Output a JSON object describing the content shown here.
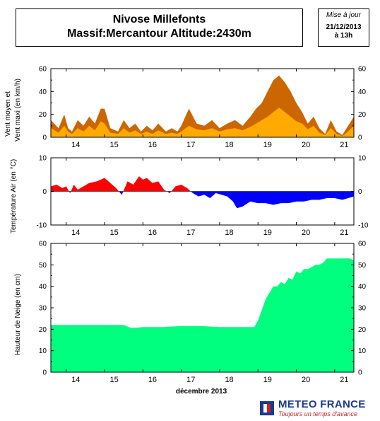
{
  "header": {
    "title_line1": "Nivose Millefonts",
    "title_line2": "Massif:Mercantour Altitude:2430m",
    "date_label": "Mise à jour",
    "date_value": "21/12/2013",
    "time_value": "à 13h"
  },
  "x_axis": {
    "day_labels": [
      "14",
      "15",
      "16",
      "17",
      "18",
      "19",
      "20",
      "21"
    ],
    "title": "décembre 2013"
  },
  "logo": {
    "name": "METEO FRANCE",
    "tagline": "Toujours un temps d'avance"
  },
  "colors": {
    "wind_max": "#cc6600",
    "wind_mean": "#ffaa00",
    "temp_positive": "#ff0000",
    "temp_negative": "#0000ff",
    "snow": "#00ff7f",
    "logo_blue": "#1b3a8c",
    "logo_red": "#cc2222"
  },
  "chart_data": [
    {
      "type": "area",
      "ylabel": "Vent moyen et Vent maxi (en km/h)",
      "ylim": [
        0,
        60
      ],
      "yticks": [
        0,
        20,
        40,
        60
      ],
      "x_unit": "day of December 2013",
      "xlim": [
        13.6,
        21.5
      ],
      "grid": false,
      "series": [
        {
          "x": [
            13.6,
            13.8,
            13.95,
            14.05,
            14.15,
            14.3,
            14.45,
            14.6,
            14.75,
            14.9,
            15.0,
            15.15,
            15.35,
            15.5,
            15.65,
            15.8,
            15.95,
            16.1,
            16.25,
            16.4,
            16.6,
            16.75,
            16.9,
            17.0,
            17.2,
            17.4,
            17.6,
            17.8,
            18.0,
            18.2,
            18.4,
            18.6,
            18.8,
            18.95,
            19.1,
            19.25,
            19.4,
            19.55,
            19.7,
            19.85,
            20.0,
            20.15,
            20.3,
            20.45,
            20.6,
            20.75,
            20.9,
            21.05,
            21.2,
            21.35,
            21.5
          ],
          "values": [
            15,
            8,
            20,
            8,
            5,
            15,
            10,
            18,
            12,
            25,
            25,
            8,
            5,
            15,
            8,
            12,
            5,
            10,
            6,
            12,
            5,
            8,
            5,
            10,
            25,
            12,
            10,
            15,
            8,
            12,
            15,
            10,
            18,
            25,
            30,
            40,
            50,
            54,
            48,
            40,
            30,
            22,
            12,
            18,
            8,
            3,
            15,
            5,
            2,
            10,
            18
          ]
        },
        {
          "x": [
            13.6,
            13.8,
            13.95,
            14.05,
            14.15,
            14.3,
            14.45,
            14.6,
            14.75,
            14.9,
            15.0,
            15.15,
            15.35,
            15.5,
            15.65,
            15.8,
            15.95,
            16.1,
            16.25,
            16.4,
            16.6,
            16.75,
            16.9,
            17.0,
            17.2,
            17.4,
            17.6,
            17.8,
            18.0,
            18.2,
            18.4,
            18.6,
            18.8,
            18.95,
            19.1,
            19.25,
            19.4,
            19.55,
            19.7,
            19.85,
            20.0,
            20.15,
            20.3,
            20.45,
            20.6,
            20.75,
            20.9,
            21.05,
            21.2,
            21.35,
            21.5
          ],
          "values": [
            8,
            4,
            10,
            5,
            3,
            8,
            5,
            10,
            6,
            14,
            12,
            4,
            3,
            8,
            4,
            6,
            3,
            5,
            3,
            6,
            3,
            4,
            3,
            5,
            10,
            7,
            6,
            8,
            5,
            7,
            8,
            6,
            9,
            12,
            15,
            18,
            22,
            26,
            22,
            18,
            14,
            12,
            7,
            10,
            4,
            2,
            8,
            3,
            1,
            5,
            10
          ]
        }
      ]
    },
    {
      "type": "area",
      "ylabel": "Température Air (en °C)",
      "ylim": [
        -10,
        10
      ],
      "yticks": [
        -10,
        0,
        10
      ],
      "xlim": [
        13.6,
        21.5
      ],
      "grid": false,
      "series": [
        {
          "x": [
            13.6,
            13.75,
            13.9,
            14.0,
            14.1,
            14.2,
            14.3,
            14.45,
            14.6,
            14.8,
            15.0,
            15.15,
            15.3,
            15.45,
            15.6,
            15.75,
            15.9,
            16.0,
            16.1,
            16.25,
            16.4,
            16.55,
            16.7,
            16.85,
            17.0,
            17.15,
            17.3,
            17.45,
            17.6,
            17.75,
            17.9,
            18.05,
            18.2,
            18.35,
            18.45,
            18.6,
            18.8,
            19.0,
            19.2,
            19.4,
            19.6,
            19.8,
            20.0,
            20.2,
            20.4,
            20.6,
            20.8,
            21.0,
            21.2,
            21.35,
            21.5
          ],
          "values": [
            1.5,
            2.0,
            1.0,
            1.5,
            -0.5,
            2.0,
            0.5,
            1.5,
            2.5,
            3.0,
            4.0,
            2.5,
            1.0,
            -1.0,
            3.0,
            2.0,
            4.5,
            3.5,
            4.0,
            2.5,
            3.0,
            0.5,
            -0.5,
            1.5,
            2.0,
            1.0,
            -0.5,
            -1.5,
            -1.0,
            -2.0,
            -0.5,
            -1.0,
            -1.5,
            -3.0,
            -5.0,
            -4.5,
            -3.0,
            -3.5,
            -3.5,
            -4.0,
            -3.5,
            -3.5,
            -3.0,
            -3.0,
            -2.5,
            -2.5,
            -2.0,
            -2.0,
            -2.5,
            -2.0,
            -1.5
          ]
        }
      ]
    },
    {
      "type": "area",
      "ylabel": "Hauteur de Neige (en cm)",
      "xlabel": "décembre 2013",
      "ylim": [
        0,
        60
      ],
      "yticks": [
        0,
        10,
        20,
        30,
        40,
        50,
        60
      ],
      "xlim": [
        13.6,
        21.5
      ],
      "grid": false,
      "series": [
        {
          "x": [
            13.6,
            14.0,
            14.5,
            15.0,
            15.5,
            15.7,
            16.0,
            16.5,
            17.0,
            17.5,
            18.0,
            18.5,
            18.9,
            19.0,
            19.1,
            19.2,
            19.3,
            19.4,
            19.5,
            19.6,
            19.7,
            19.8,
            19.9,
            20.0,
            20.1,
            20.2,
            20.3,
            20.4,
            20.5,
            20.6,
            20.7,
            20.8,
            20.9,
            21.0,
            21.2,
            21.4,
            21.5
          ],
          "values": [
            22,
            22,
            22,
            22,
            22,
            20.5,
            21,
            21,
            21.5,
            21.5,
            21,
            21,
            21,
            24,
            29,
            34,
            37,
            40,
            40,
            42,
            41,
            44,
            43,
            47,
            46,
            48,
            48,
            49,
            50,
            50,
            51,
            53,
            53,
            53,
            53,
            53,
            52
          ]
        }
      ]
    }
  ]
}
